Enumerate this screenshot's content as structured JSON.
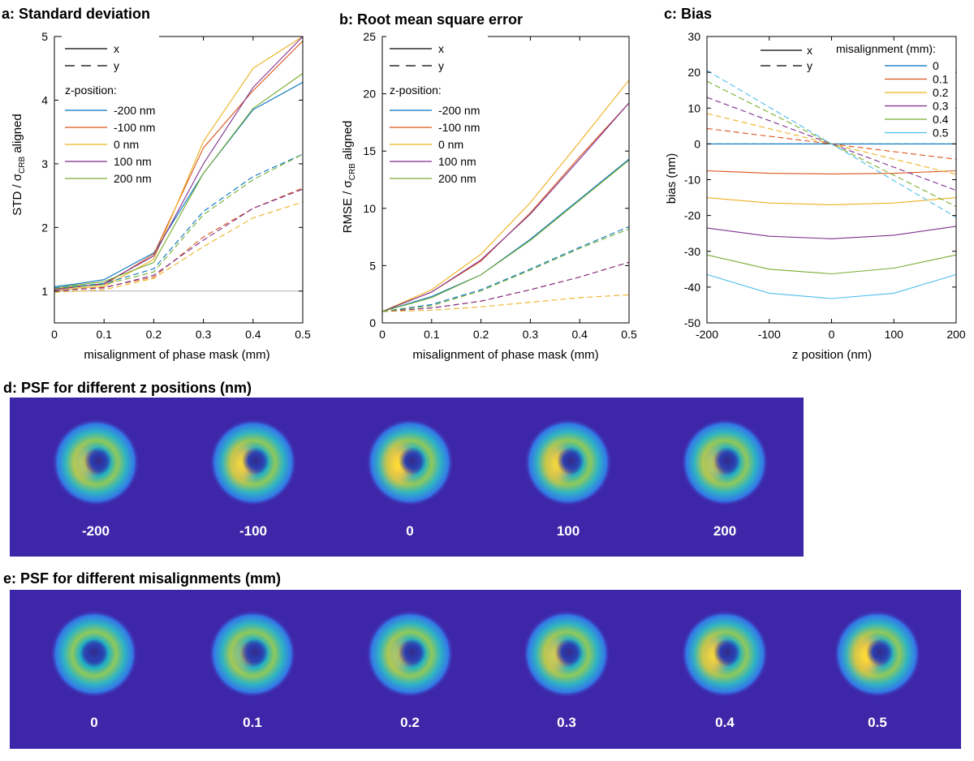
{
  "colors": {
    "s200neg": "#0072BD",
    "s100neg": "#D95319",
    "s0": "#EDB120",
    "s100": "#7E2F8E",
    "s200": "#77AC30",
    "m05": "#4DBEEE",
    "psf_background": "#3E26A8",
    "reference_line": "#b0b0b0"
  },
  "chart_data": [
    {
      "id": "a",
      "type": "line",
      "title": "a: Standard deviation",
      "xlabel": "misalignment of phase mask (mm)",
      "ylabel_main": "STD / σ",
      "ylabel_sub": "CRB",
      "ylabel_tail": " aligned",
      "xlim": [
        0,
        0.5
      ],
      "ylim": [
        0.5,
        5
      ],
      "xticks": [
        "0",
        "0.1",
        "0.2",
        "0.3",
        "0.4",
        "0.5"
      ],
      "xtick_values": [
        0,
        0.1,
        0.2,
        0.3,
        0.4,
        0.5
      ],
      "yticks": [
        "1",
        "2",
        "3",
        "4",
        "5"
      ],
      "ytick_values": [
        1,
        2,
        3,
        4,
        5
      ],
      "reference_y": 1,
      "legend_style": [
        "x",
        "y"
      ],
      "legend_title": "z-position:",
      "x": [
        0,
        0.05,
        0.1,
        0.2,
        0.3,
        0.4,
        0.5
      ],
      "series": [
        {
          "name": "-200 nm",
          "color_key": "s200neg",
          "style": "solid",
          "values": [
            1.07,
            1.12,
            1.18,
            1.6,
            2.85,
            3.85,
            4.28
          ]
        },
        {
          "name": "-100 nm",
          "color_key": "s100neg",
          "style": "solid",
          "values": [
            1.03,
            1.08,
            1.1,
            1.58,
            3.25,
            4.15,
            4.93
          ]
        },
        {
          "name": "0 nm",
          "color_key": "s0",
          "style": "solid",
          "values": [
            1.0,
            1.05,
            1.07,
            1.5,
            3.35,
            4.5,
            5.0
          ]
        },
        {
          "name": "100 nm",
          "color_key": "s100",
          "style": "solid",
          "values": [
            1.02,
            1.07,
            1.12,
            1.55,
            3.0,
            4.2,
            5.0
          ]
        },
        {
          "name": "200 nm",
          "color_key": "s200",
          "style": "solid",
          "values": [
            1.05,
            1.1,
            1.15,
            1.45,
            2.85,
            3.87,
            4.42
          ]
        },
        {
          "name": "-200 nm y",
          "color_key": "s200neg",
          "style": "dashed",
          "values": [
            1.05,
            1.08,
            1.12,
            1.35,
            2.25,
            2.8,
            3.15
          ]
        },
        {
          "name": "-100 nm y",
          "color_key": "s100neg",
          "style": "dashed",
          "values": [
            1.0,
            1.03,
            1.06,
            1.22,
            1.85,
            2.3,
            2.62
          ]
        },
        {
          "name": "0 nm y",
          "color_key": "s0",
          "style": "dashed",
          "values": [
            0.98,
            1.0,
            1.02,
            1.2,
            1.7,
            2.15,
            2.4
          ]
        },
        {
          "name": "100 nm y",
          "color_key": "s100",
          "style": "dashed",
          "values": [
            1.0,
            1.03,
            1.05,
            1.25,
            1.8,
            2.3,
            2.6
          ]
        },
        {
          "name": "200 nm y",
          "color_key": "s200",
          "style": "dashed",
          "values": [
            1.04,
            1.07,
            1.1,
            1.3,
            2.2,
            2.75,
            3.15
          ]
        }
      ]
    },
    {
      "id": "b",
      "type": "line",
      "title": "b: Root mean square error",
      "xlabel": "misalignment of phase mask (mm)",
      "ylabel_main": "RMSE / σ",
      "ylabel_sub": "CRB",
      "ylabel_tail": " aligned",
      "xlim": [
        0,
        0.5
      ],
      "ylim": [
        0,
        25
      ],
      "xticks": [
        "0",
        "0.1",
        "0.2",
        "0.3",
        "0.4",
        "0.5"
      ],
      "xtick_values": [
        0,
        0.1,
        0.2,
        0.3,
        0.4,
        0.5
      ],
      "yticks": [
        "0",
        "5",
        "10",
        "15",
        "20",
        "25"
      ],
      "ytick_values": [
        0,
        5,
        10,
        15,
        20,
        25
      ],
      "legend_style": [
        "x",
        "y"
      ],
      "legend_title": "z-position:",
      "x": [
        0,
        0.1,
        0.2,
        0.3,
        0.4,
        0.5
      ],
      "series": [
        {
          "name": "-200 nm",
          "color_key": "s200neg",
          "style": "solid",
          "values": [
            1.0,
            2.3,
            4.2,
            7.3,
            10.8,
            14.3
          ]
        },
        {
          "name": "-100 nm",
          "color_key": "s100neg",
          "style": "solid",
          "values": [
            1.0,
            2.7,
            5.4,
            9.6,
            14.5,
            19.2
          ]
        },
        {
          "name": "0 nm",
          "color_key": "s0",
          "style": "solid",
          "values": [
            1.0,
            2.9,
            6.0,
            10.5,
            15.8,
            21.2
          ]
        },
        {
          "name": "100 nm",
          "color_key": "s100",
          "style": "solid",
          "values": [
            1.0,
            2.7,
            5.5,
            9.5,
            14.3,
            19.2
          ]
        },
        {
          "name": "200 nm",
          "color_key": "s200",
          "style": "solid",
          "values": [
            1.0,
            2.2,
            4.2,
            7.2,
            10.7,
            14.2
          ]
        },
        {
          "name": "-200 nm y",
          "color_key": "s200neg",
          "style": "dashed",
          "values": [
            1.0,
            1.6,
            2.9,
            4.7,
            6.6,
            8.4
          ]
        },
        {
          "name": "-100 nm y",
          "color_key": "s100neg",
          "style": "dashed",
          "values": [
            1.0,
            1.3,
            1.9,
            2.9,
            4.0,
            5.3
          ]
        },
        {
          "name": "0 nm y",
          "color_key": "s0",
          "style": "dashed",
          "values": [
            1.0,
            1.1,
            1.4,
            1.8,
            2.2,
            2.45
          ]
        },
        {
          "name": "100 nm y",
          "color_key": "s100",
          "style": "dashed",
          "values": [
            1.0,
            1.3,
            1.9,
            2.9,
            4.0,
            5.3
          ]
        },
        {
          "name": "200 nm y",
          "color_key": "s200",
          "style": "dashed",
          "values": [
            1.0,
            1.5,
            2.8,
            4.6,
            6.5,
            8.2
          ]
        }
      ]
    },
    {
      "id": "c",
      "type": "line",
      "title": "c: Bias",
      "xlabel": "z position (nm)",
      "ylabel_main": "bias (nm)",
      "ylabel_sub": "",
      "ylabel_tail": "",
      "xlim": [
        -200,
        200
      ],
      "ylim": [
        -50,
        30
      ],
      "xticks": [
        "-200",
        "-100",
        "0",
        "100",
        "200"
      ],
      "xtick_values": [
        -200,
        -100,
        0,
        100,
        200
      ],
      "yticks": [
        "-50",
        "-40",
        "-30",
        "-20",
        "-10",
        "0",
        "10",
        "20",
        "30"
      ],
      "ytick_values": [
        -50,
        -40,
        -30,
        -20,
        -10,
        0,
        10,
        20,
        30
      ],
      "legend_style": [
        "x",
        "y"
      ],
      "legend_title": "misalignment (mm):",
      "x": [
        -200,
        -100,
        0,
        100,
        200
      ],
      "series": [
        {
          "name": "0",
          "color_key": "s200neg",
          "style": "solid",
          "values": [
            0,
            0,
            0,
            0,
            0
          ]
        },
        {
          "name": "0.1",
          "color_key": "s100neg",
          "style": "solid",
          "values": [
            -7.5,
            -8.2,
            -8.4,
            -8.2,
            -7.5
          ]
        },
        {
          "name": "0.2",
          "color_key": "s0",
          "style": "solid",
          "values": [
            -15,
            -16.5,
            -17,
            -16.5,
            -15
          ]
        },
        {
          "name": "0.3",
          "color_key": "s100",
          "style": "solid",
          "values": [
            -23.5,
            -25.8,
            -26.5,
            -25.5,
            -23
          ]
        },
        {
          "name": "0.4",
          "color_key": "s200",
          "style": "solid",
          "values": [
            -31,
            -35,
            -36.3,
            -34.7,
            -31
          ]
        },
        {
          "name": "0.5",
          "color_key": "m05",
          "style": "solid",
          "values": [
            -36.5,
            -41.7,
            -43.2,
            -41.7,
            -36.5
          ]
        },
        {
          "name": "0 y",
          "color_key": "s200neg",
          "style": "dashed",
          "values": [
            0,
            0,
            0,
            0,
            0
          ]
        },
        {
          "name": "0.1 y",
          "color_key": "s100neg",
          "style": "dashed",
          "values": [
            4.3,
            2.15,
            0,
            -2.15,
            -4.3
          ]
        },
        {
          "name": "0.2 y",
          "color_key": "s0",
          "style": "dashed",
          "values": [
            8.5,
            4.25,
            0,
            -4.25,
            -8.5
          ]
        },
        {
          "name": "0.3 y",
          "color_key": "s100",
          "style": "dashed",
          "values": [
            13,
            6.5,
            0,
            -6.5,
            -13
          ]
        },
        {
          "name": "0.4 y",
          "color_key": "s200",
          "style": "dashed",
          "values": [
            17.5,
            8.75,
            0,
            -8.75,
            -17.5
          ]
        },
        {
          "name": "0.5 y",
          "color_key": "m05",
          "style": "dashed",
          "values": [
            20.5,
            10.25,
            0,
            -10.25,
            -20.5
          ]
        }
      ]
    }
  ],
  "panel_d": {
    "title": "d: PSF for different z positions (nm)",
    "psfs": [
      {
        "label": "-200",
        "intensity": 0.45
      },
      {
        "label": "-100",
        "intensity": 0.8
      },
      {
        "label": "0",
        "intensity": 1.0
      },
      {
        "label": "100",
        "intensity": 0.8
      },
      {
        "label": "200",
        "intensity": 0.45
      }
    ]
  },
  "panel_e": {
    "title": "e: PSF for different misalignments (mm)",
    "psfs": [
      {
        "label": "0",
        "intensity": 0.0
      },
      {
        "label": "0.1",
        "intensity": 0.2
      },
      {
        "label": "0.2",
        "intensity": 0.4
      },
      {
        "label": "0.3",
        "intensity": 0.6
      },
      {
        "label": "0.4",
        "intensity": 0.8
      },
      {
        "label": "0.5",
        "intensity": 1.0
      }
    ]
  }
}
